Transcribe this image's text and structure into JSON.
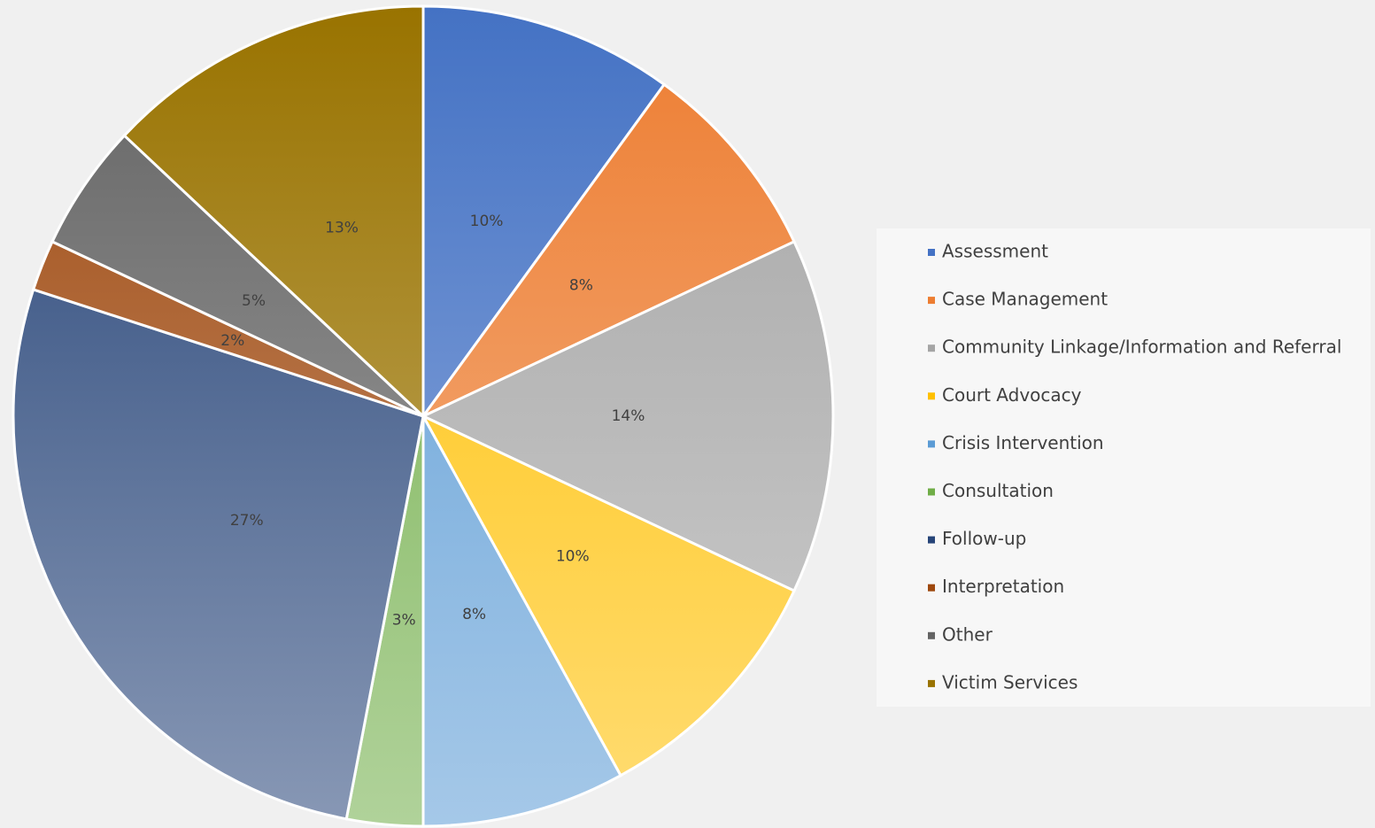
{
  "chart_data": {
    "type": "pie",
    "categories": [
      "Assessment",
      "Case Management",
      "Community Linkage/Information and Referral",
      "Court Advocacy",
      "Crisis Intervention",
      "Consultation",
      "Follow-up",
      "Interpretation",
      "Other",
      "Victim Services"
    ],
    "values": [
      10,
      8,
      14,
      10,
      8,
      3,
      27,
      2,
      5,
      13
    ],
    "value_labels": [
      "10%",
      "8%",
      "14%",
      "10%",
      "8%",
      "3%",
      "27%",
      "2%",
      "5%",
      "13%"
    ],
    "colors": [
      "#4472c4",
      "#ed7d31",
      "#a5a5a5",
      "#ffc000",
      "#5b9bd5",
      "#70ad47",
      "#264478",
      "#9e480e",
      "#636363",
      "#997300"
    ],
    "legend": "right"
  }
}
